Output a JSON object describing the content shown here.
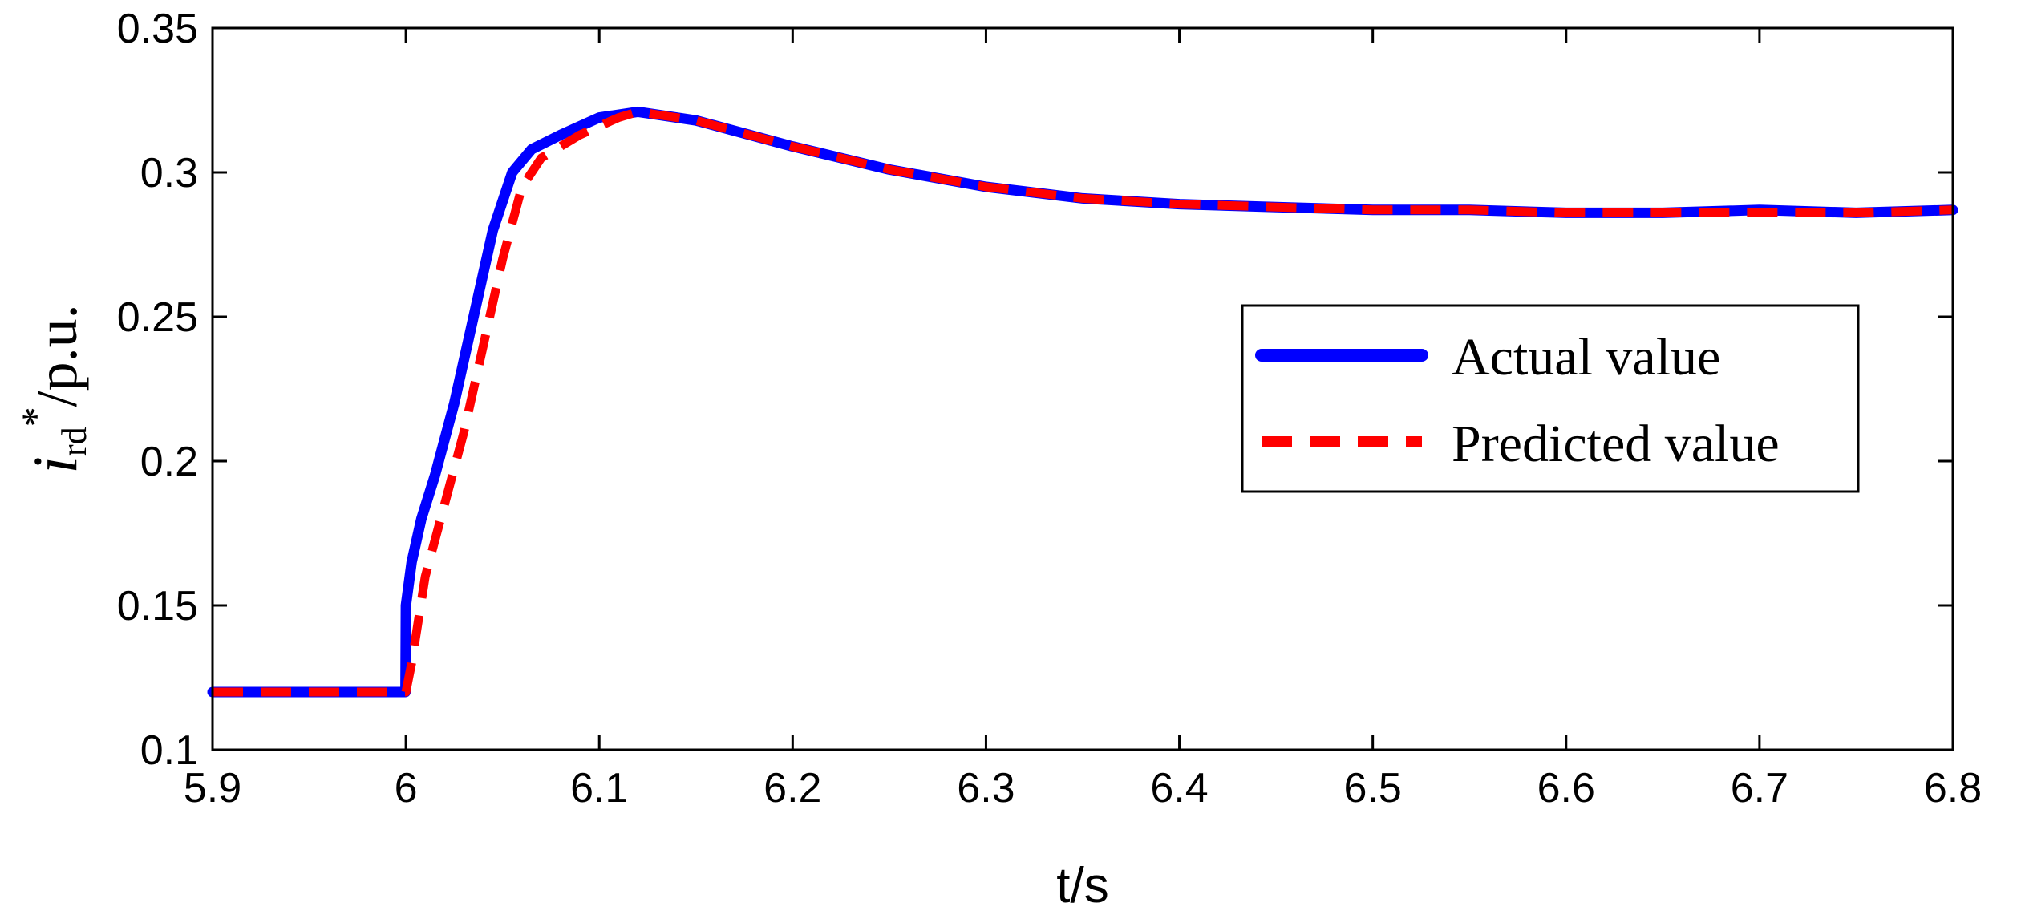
{
  "chart_data": {
    "type": "line",
    "xlabel": "t/s",
    "ylabel": {
      "main": "i",
      "sub": "rd",
      "sup": "*",
      "unit": "/p.u."
    },
    "xlim": [
      5.9,
      6.8
    ],
    "ylim": [
      0.1,
      0.35
    ],
    "xticks": [
      "5.9",
      "6",
      "6.1",
      "6.2",
      "6.3",
      "6.4",
      "6.5",
      "6.6",
      "6.7",
      "6.8"
    ],
    "yticks": [
      "0.1",
      "0.15",
      "0.2",
      "0.25",
      "0.3",
      "0.35"
    ],
    "grid": false,
    "legend_position": "right-middle",
    "series": [
      {
        "name": "Actual value",
        "color": "#0000ff",
        "style": "solid",
        "x": [
          5.9,
          5.95,
          5.9998,
          6.0,
          6.003,
          6.008,
          6.015,
          6.025,
          6.035,
          6.045,
          6.055,
          6.065,
          6.08,
          6.1,
          6.12,
          6.15,
          6.2,
          6.25,
          6.3,
          6.35,
          6.4,
          6.45,
          6.5,
          6.55,
          6.6,
          6.65,
          6.7,
          6.75,
          6.8
        ],
        "y": [
          0.12,
          0.12,
          0.12,
          0.15,
          0.165,
          0.18,
          0.195,
          0.22,
          0.25,
          0.28,
          0.3,
          0.308,
          0.313,
          0.319,
          0.321,
          0.318,
          0.309,
          0.301,
          0.295,
          0.291,
          0.289,
          0.288,
          0.287,
          0.287,
          0.286,
          0.286,
          0.287,
          0.286,
          0.287
        ]
      },
      {
        "name": "Predicted value",
        "color": "#ff0000",
        "style": "dashed",
        "x": [
          5.9,
          5.95,
          6.0,
          6.003,
          6.01,
          6.02,
          6.03,
          6.04,
          6.05,
          6.06,
          6.07,
          6.09,
          6.11,
          6.12,
          6.15,
          6.2,
          6.25,
          6.3,
          6.35,
          6.4,
          6.45,
          6.5,
          6.55,
          6.6,
          6.65,
          6.7,
          6.75,
          6.8
        ],
        "y": [
          0.12,
          0.12,
          0.12,
          0.13,
          0.16,
          0.185,
          0.21,
          0.24,
          0.27,
          0.295,
          0.305,
          0.313,
          0.319,
          0.321,
          0.318,
          0.309,
          0.301,
          0.295,
          0.291,
          0.289,
          0.288,
          0.287,
          0.287,
          0.286,
          0.286,
          0.286,
          0.286,
          0.287
        ]
      }
    ]
  }
}
